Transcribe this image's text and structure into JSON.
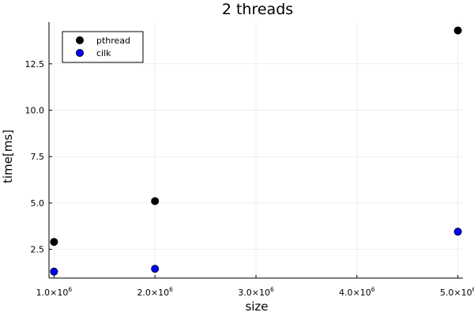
{
  "chart_data": {
    "type": "scatter",
    "title": "2 threads",
    "xlabel": "size",
    "ylabel": "time[ms]",
    "xlim": [
      950000,
      5050000
    ],
    "ylim": [
      0.95,
      14.75
    ],
    "x_ticks": [
      {
        "value": 1000000,
        "mantissa": "1.0",
        "base": "×10",
        "exp": "6"
      },
      {
        "value": 2000000,
        "mantissa": "2.0",
        "base": "×10",
        "exp": "6"
      },
      {
        "value": 3000000,
        "mantissa": "3.0",
        "base": "×10",
        "exp": "6"
      },
      {
        "value": 4000000,
        "mantissa": "4.0",
        "base": "×10",
        "exp": "6"
      },
      {
        "value": 5000000,
        "mantissa": "5.0",
        "base": "×10",
        "exp": "6"
      }
    ],
    "y_ticks": [
      {
        "value": 2.5,
        "label": "2.5"
      },
      {
        "value": 5.0,
        "label": "5.0"
      },
      {
        "value": 7.5,
        "label": "7.5"
      },
      {
        "value": 10.0,
        "label": "10.0"
      },
      {
        "value": 12.5,
        "label": "12.5"
      }
    ],
    "grid": true,
    "legend_position": "top-left",
    "series": [
      {
        "name": "pthread",
        "color": "#000000",
        "x": [
          1000000,
          2000000,
          5000000
        ],
        "y": [
          2.9,
          5.1,
          14.3
        ]
      },
      {
        "name": "cilk",
        "color": "#0000ff",
        "x": [
          1000000,
          2000000,
          5000000
        ],
        "y": [
          1.3,
          1.45,
          3.45
        ]
      }
    ]
  }
}
